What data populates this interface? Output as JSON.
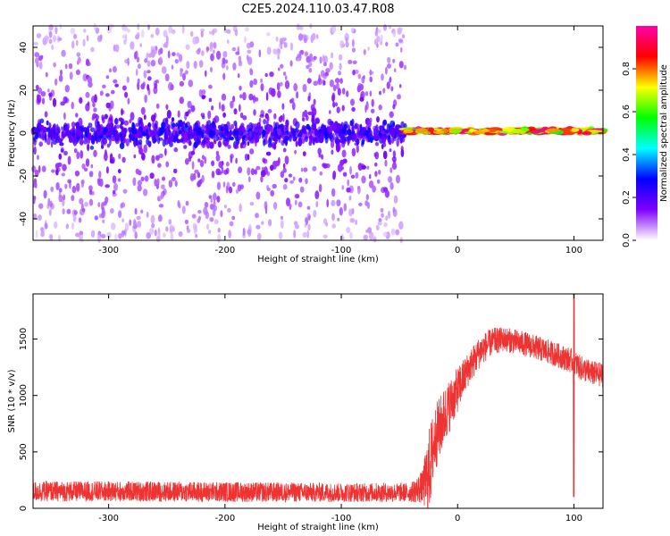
{
  "figure": {
    "title": "C2E5.2024.110.03.47.R08"
  },
  "chart_data": [
    {
      "type": "heatmap",
      "xlabel": "Height of straight line (km)",
      "ylabel": "Frequency (Hz)",
      "xlim": [
        -365,
        125
      ],
      "ylim": [
        -50,
        50
      ],
      "xticks": [
        -300,
        -200,
        -100,
        0,
        100
      ],
      "yticks": [
        -40,
        -20,
        0,
        20,
        40
      ],
      "grid": false,
      "description_regions": [
        {
          "x_range": [
            -365,
            -45
          ],
          "freq_center": 0,
          "freq_spread": 50,
          "amplitude": "low (0.05-0.3)"
        },
        {
          "x_range": [
            -45,
            125
          ],
          "freq_center": 1,
          "freq_spread": 4,
          "amplitude": "high (0.5-1.0)"
        }
      ],
      "colorbar": {
        "label": "Normalized spectral amplitude",
        "range": [
          0.0,
          1.0
        ],
        "ticks": [
          0.0,
          0.2,
          0.4,
          0.6,
          0.8
        ],
        "tick_labels": [
          "0.0",
          "0.2",
          "0.4",
          "0.6",
          "0.8"
        ],
        "colormap": [
          "#ffffff",
          "#8000ff",
          "#0000ff",
          "#00ffff",
          "#00ff00",
          "#ffff00",
          "#ff0000",
          "#ff00aa"
        ]
      }
    },
    {
      "type": "line",
      "xlabel": "Height of straight line (km)",
      "ylabel": "SNR (10 * v/v)",
      "xlim": [
        -365,
        125
      ],
      "ylim": [
        0,
        1900
      ],
      "xticks": [
        -300,
        -200,
        -100,
        0,
        100
      ],
      "yticks": [
        0,
        500,
        1000,
        1500
      ],
      "grid": false,
      "series": [
        {
          "color": "#ee3333",
          "x": [
            -365,
            -300,
            -200,
            -100,
            -40,
            -30,
            -25,
            -20,
            -10,
            0,
            10,
            20,
            30,
            40,
            60,
            80,
            95,
            100,
            105,
            115,
            125
          ],
          "y": [
            150,
            150,
            145,
            140,
            140,
            190,
            300,
            600,
            850,
            1050,
            1250,
            1400,
            1480,
            1500,
            1450,
            1380,
            1320,
            1300,
            1250,
            1200,
            1180
          ],
          "noise": [
            90,
            90,
            90,
            85,
            85,
            150,
            400,
            300,
            250,
            200,
            150,
            140,
            120,
            110,
            110,
            110,
            110,
            110,
            110,
            110,
            110
          ]
        }
      ]
    }
  ]
}
